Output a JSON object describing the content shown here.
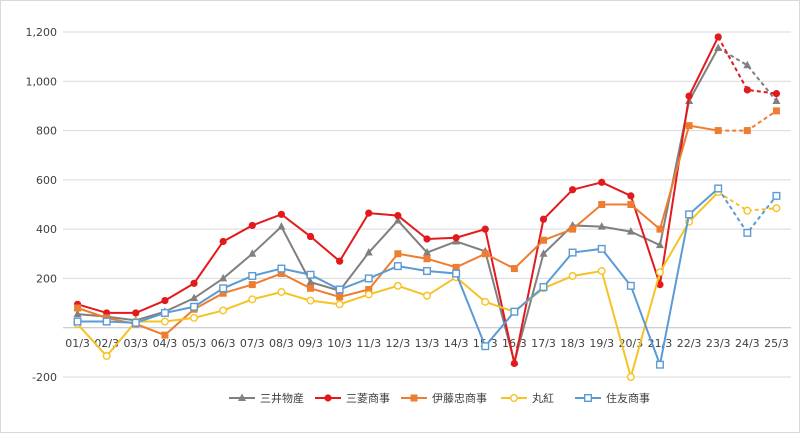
{
  "chart_data": {
    "type": "line",
    "categories": [
      "01/3",
      "02/3",
      "03/3",
      "04/3",
      "05/3",
      "06/3",
      "07/3",
      "08/3",
      "09/3",
      "10/3",
      "11/3",
      "12/3",
      "13/3",
      "14/3",
      "15/3",
      "16/3",
      "17/3",
      "18/3",
      "19/3",
      "20/3",
      "21/3",
      "22/3",
      "23/3",
      "24/3",
      "25/3"
    ],
    "y_ticks": [
      "-200",
      "",
      "200",
      "400",
      "600",
      "800",
      "1,000",
      "1,200"
    ],
    "y_tick_values": [
      -200,
      0,
      200,
      400,
      600,
      800,
      1000,
      1200
    ],
    "ylim": [
      -200,
      1200
    ],
    "grid": "horizontal",
    "legend_position": "bottom",
    "forecast_from_index": 23,
    "series": [
      {
        "name": "三井物産",
        "color": "#808080",
        "marker": "triangle",
        "values": [
          55,
          45,
          30,
          65,
          120,
          200,
          300,
          410,
          185,
          150,
          305,
          435,
          305,
          350,
          310,
          -140,
          300,
          415,
          410,
          390,
          335,
          920,
          1135,
          1065,
          920
        ]
      },
      {
        "name": "三菱商事",
        "color": "#e3191c",
        "marker": "circle",
        "values": [
          95,
          60,
          60,
          110,
          180,
          350,
          415,
          460,
          370,
          270,
          465,
          455,
          360,
          365,
          400,
          -145,
          440,
          560,
          590,
          535,
          175,
          940,
          1180,
          965,
          950
        ]
      },
      {
        "name": "伊藤忠商事",
        "color": "#ed7d31",
        "marker": "square",
        "values": [
          80,
          40,
          15,
          -30,
          75,
          140,
          175,
          220,
          160,
          125,
          155,
          300,
          280,
          245,
          300,
          240,
          355,
          400,
          500,
          500,
          400,
          820,
          800,
          800,
          880
        ]
      },
      {
        "name": "丸紅",
        "color": "#f5c325",
        "marker": "circle-open",
        "values": [
          15,
          -115,
          25,
          25,
          40,
          70,
          115,
          145,
          110,
          95,
          135,
          170,
          130,
          205,
          105,
          65,
          160,
          210,
          230,
          -200,
          225,
          430,
          550,
          475,
          485
        ]
      },
      {
        "name": "住友商事",
        "color": "#5b9bd5",
        "marker": "square-open",
        "values": [
          25,
          25,
          20,
          60,
          85,
          160,
          210,
          240,
          215,
          155,
          200,
          250,
          230,
          220,
          -75,
          65,
          165,
          305,
          320,
          170,
          -150,
          460,
          565,
          385,
          535
        ]
      }
    ]
  }
}
